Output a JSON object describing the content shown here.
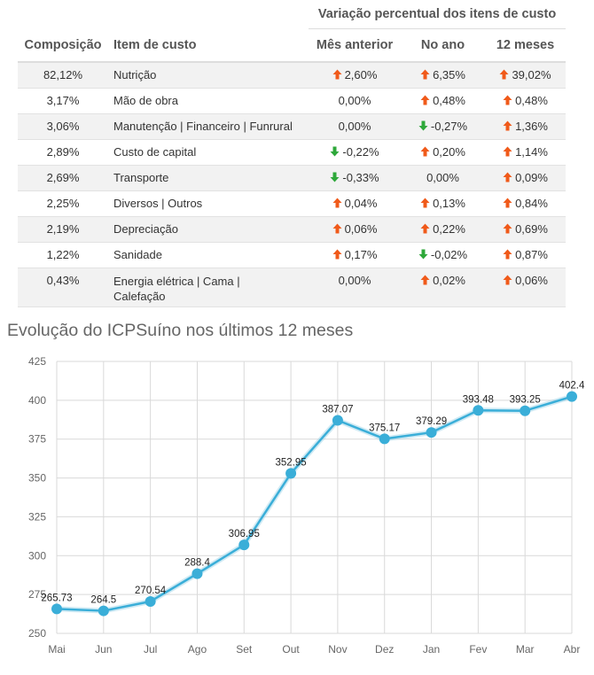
{
  "table": {
    "group_header": "Variação percentual dos itens de custo",
    "headers": {
      "composition": "Composição",
      "item": "Item de custo",
      "prev_month": "Mês anterior",
      "ytd": "No ano",
      "last12": "12 meses"
    },
    "rows": [
      {
        "composition": "82,12%",
        "item": "Nutrição",
        "prev": "2,60%",
        "prev_dir": "up",
        "ytd": "6,35%",
        "ytd_dir": "up",
        "m12": "39,02%",
        "m12_dir": "up"
      },
      {
        "composition": "3,17%",
        "item": "Mão de obra",
        "prev": "0,00%",
        "prev_dir": "none",
        "ytd": "0,48%",
        "ytd_dir": "up",
        "m12": "0,48%",
        "m12_dir": "up"
      },
      {
        "composition": "3,06%",
        "item": "Manutenção | Financeiro | Funrural",
        "prev": "0,00%",
        "prev_dir": "none",
        "ytd": "-0,27%",
        "ytd_dir": "down",
        "m12": "1,36%",
        "m12_dir": "up"
      },
      {
        "composition": "2,89%",
        "item": "Custo de capital",
        "prev": "-0,22%",
        "prev_dir": "down",
        "ytd": "0,20%",
        "ytd_dir": "up",
        "m12": "1,14%",
        "m12_dir": "up"
      },
      {
        "composition": "2,69%",
        "item": "Transporte",
        "prev": "-0,33%",
        "prev_dir": "down",
        "ytd": "0,00%",
        "ytd_dir": "none",
        "m12": "0,09%",
        "m12_dir": "up"
      },
      {
        "composition": "2,25%",
        "item": "Diversos | Outros",
        "prev": "0,04%",
        "prev_dir": "up",
        "ytd": "0,13%",
        "ytd_dir": "up",
        "m12": "0,84%",
        "m12_dir": "up"
      },
      {
        "composition": "2,19%",
        "item": "Depreciação",
        "prev": "0,06%",
        "prev_dir": "up",
        "ytd": "0,22%",
        "ytd_dir": "up",
        "m12": "0,69%",
        "m12_dir": "up"
      },
      {
        "composition": "1,22%",
        "item": "Sanidade",
        "prev": "0,17%",
        "prev_dir": "up",
        "ytd": "-0,02%",
        "ytd_dir": "down",
        "m12": "0,87%",
        "m12_dir": "up"
      },
      {
        "composition": "0,43%",
        "item": "Energia elétrica | Cama | Calefação",
        "prev": "0,00%",
        "prev_dir": "none",
        "ytd": "0,02%",
        "ytd_dir": "up",
        "m12": "0,06%",
        "m12_dir": "up"
      }
    ]
  },
  "colors": {
    "up_arrow": "#f05a1a",
    "down_arrow": "#2ea83a",
    "line": "#3aaed8",
    "grid": "#d9d9d9"
  },
  "chart_title": "Evolução do ICPSuíno nos últimos 12 meses",
  "chart_data": {
    "type": "line",
    "title": "Evolução do ICPSuíno nos últimos 12 meses",
    "categories": [
      "Mai",
      "Jun",
      "Jul",
      "Ago",
      "Set",
      "Out",
      "Nov",
      "Dez",
      "Jan",
      "Fev",
      "Mar",
      "Abr"
    ],
    "values": [
      265.73,
      264.5,
      270.54,
      288.4,
      306.95,
      352.95,
      387.07,
      375.17,
      379.29,
      393.48,
      393.25,
      402.4
    ],
    "labels": [
      "265.73",
      "264.5",
      "270.54",
      "288.4",
      "306.95",
      "352.95",
      "387.07",
      "375.17",
      "379.29",
      "393.48",
      "393.25",
      "402.4"
    ],
    "ylim": [
      250,
      425
    ],
    "yticks": [
      250,
      275,
      300,
      325,
      350,
      375,
      400,
      425
    ],
    "xlabel": "",
    "ylabel": "",
    "grid": true,
    "legend": "none"
  }
}
